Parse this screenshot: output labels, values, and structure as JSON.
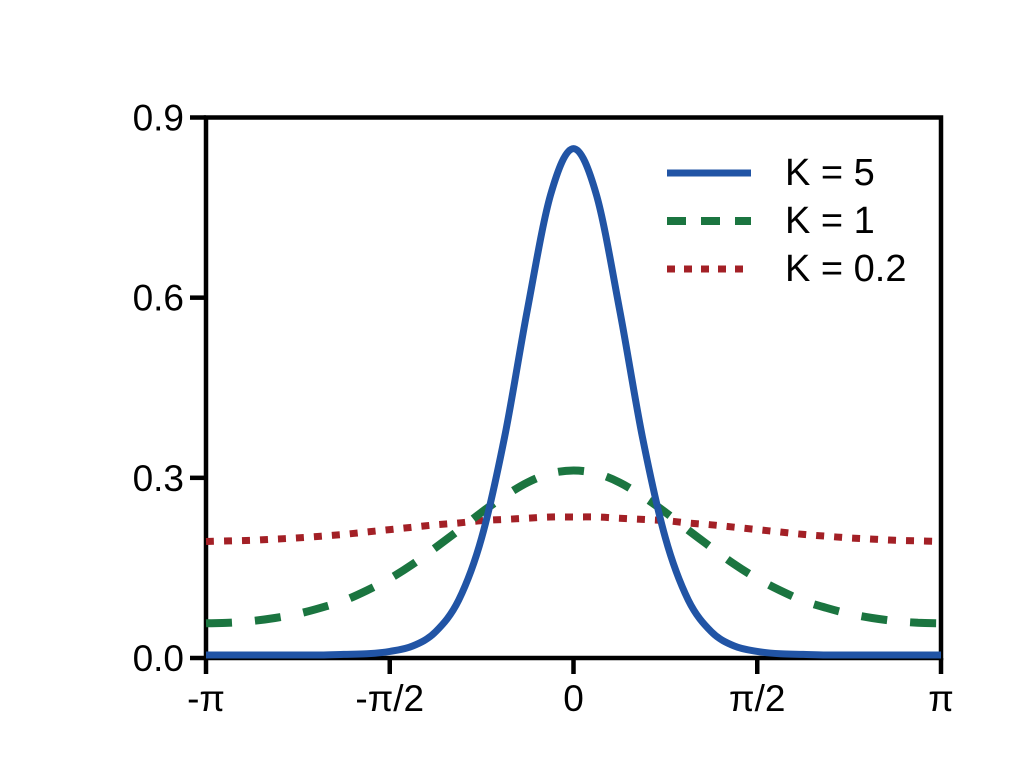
{
  "figure": {
    "background": "#ffffff",
    "axes_color": "#000000",
    "text_color": "#000000"
  },
  "chart_data": {
    "type": "line",
    "title": "",
    "xlabel": "",
    "ylabel": "",
    "grid": false,
    "legend_position": "upper right",
    "xlim_units_pi": [
      -1,
      1
    ],
    "ylim": [
      0,
      0.9
    ],
    "x_ticks": [
      {
        "pos": -1,
        "label": "-π"
      },
      {
        "pos": -0.5,
        "label": "-π/2"
      },
      {
        "pos": 0,
        "label": "0"
      },
      {
        "pos": 0.5,
        "label": "π/2"
      },
      {
        "pos": 1,
        "label": "π"
      }
    ],
    "y_ticks": [
      {
        "pos": 0.0,
        "label": "0.0"
      },
      {
        "pos": 0.3,
        "label": "0.3"
      },
      {
        "pos": 0.6,
        "label": "0.6"
      },
      {
        "pos": 0.9,
        "label": "0.9"
      }
    ],
    "x_units_pi": [
      -1,
      -0.9375,
      -0.875,
      -0.8125,
      -0.75,
      -0.6875,
      -0.625,
      -0.5625,
      -0.5,
      -0.4375,
      -0.375,
      -0.3125,
      -0.25,
      -0.1875,
      -0.125,
      -0.0625,
      0,
      0.0625,
      0.125,
      0.1875,
      0.25,
      0.3125,
      0.375,
      0.4375,
      0.5,
      0.5625,
      0.625,
      0.6875,
      0.75,
      0.8125,
      0.875,
      0.9375,
      1
    ],
    "series": [
      {
        "name": "K = 5",
        "color": "#2154A5",
        "style": "solid",
        "values": [
          0.0,
          0.0,
          0.0,
          0.0,
          0.0,
          0.0,
          0.001,
          0.002,
          0.006,
          0.015,
          0.039,
          0.092,
          0.196,
          0.365,
          0.58,
          0.77,
          0.848,
          0.77,
          0.58,
          0.365,
          0.196,
          0.092,
          0.039,
          0.015,
          0.006,
          0.002,
          0.001,
          0.0,
          0.0,
          0.0,
          0.0,
          0.0,
          0.0
        ]
      },
      {
        "name": "K = 1",
        "color": "#1B7540",
        "style": "dashed",
        "values": [
          0.053,
          0.054,
          0.057,
          0.062,
          0.069,
          0.079,
          0.091,
          0.108,
          0.128,
          0.152,
          0.18,
          0.209,
          0.239,
          0.266,
          0.289,
          0.304,
          0.309,
          0.304,
          0.289,
          0.266,
          0.239,
          0.209,
          0.18,
          0.152,
          0.128,
          0.108,
          0.091,
          0.079,
          0.069,
          0.062,
          0.057,
          0.054,
          0.053
        ]
      },
      {
        "name": "K = 0.2",
        "color": "#A32026",
        "style": "dotted",
        "values": [
          0.19,
          0.191,
          0.192,
          0.194,
          0.196,
          0.199,
          0.202,
          0.206,
          0.21,
          0.214,
          0.218,
          0.221,
          0.225,
          0.227,
          0.229,
          0.231,
          0.231,
          0.231,
          0.229,
          0.227,
          0.225,
          0.221,
          0.218,
          0.214,
          0.21,
          0.206,
          0.202,
          0.199,
          0.196,
          0.194,
          0.192,
          0.191,
          0.19
        ]
      }
    ]
  }
}
